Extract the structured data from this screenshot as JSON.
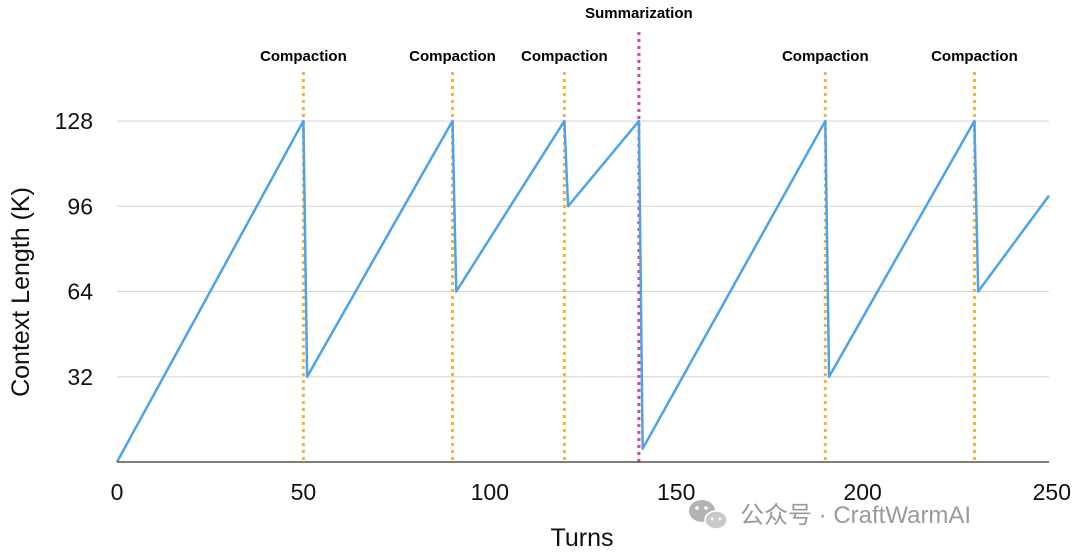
{
  "chart_data": {
    "type": "line",
    "title": "",
    "xlabel": "Turns",
    "ylabel": "Context Length (K)",
    "xlim": [
      0,
      250
    ],
    "ylim": [
      0,
      128
    ],
    "x_ticks": [
      0,
      50,
      100,
      150,
      200,
      250
    ],
    "y_ticks": [
      32,
      64,
      96,
      128
    ],
    "grid": "horizontal",
    "series": [
      {
        "name": "Context Length",
        "color": "#4da3ea",
        "points": [
          [
            0,
            0
          ],
          [
            50,
            128
          ],
          [
            51,
            32
          ],
          [
            90,
            128
          ],
          [
            91,
            64
          ],
          [
            120,
            128
          ],
          [
            121,
            96
          ],
          [
            140,
            128
          ],
          [
            141,
            5
          ],
          [
            190,
            128
          ],
          [
            191,
            32
          ],
          [
            230,
            128
          ],
          [
            231,
            64
          ],
          [
            250,
            100
          ]
        ]
      }
    ],
    "events": [
      {
        "x": 50,
        "label": "Compaction",
        "kind": "compaction"
      },
      {
        "x": 90,
        "label": "Compaction",
        "kind": "compaction"
      },
      {
        "x": 120,
        "label": "Compaction",
        "kind": "compaction"
      },
      {
        "x": 140,
        "label": "Summarization",
        "kind": "summarization"
      },
      {
        "x": 190,
        "label": "Compaction",
        "kind": "compaction"
      },
      {
        "x": 230,
        "label": "Compaction",
        "kind": "compaction"
      }
    ],
    "colors": {
      "line": "#4da3ea",
      "compaction": "#f4b23d",
      "summarization": "#e0409a",
      "grid": "#d4d4d4",
      "axis": "#333333"
    }
  },
  "watermark": {
    "text": "公众号 · CraftWarmAI",
    "icon": "wechat-icon"
  }
}
